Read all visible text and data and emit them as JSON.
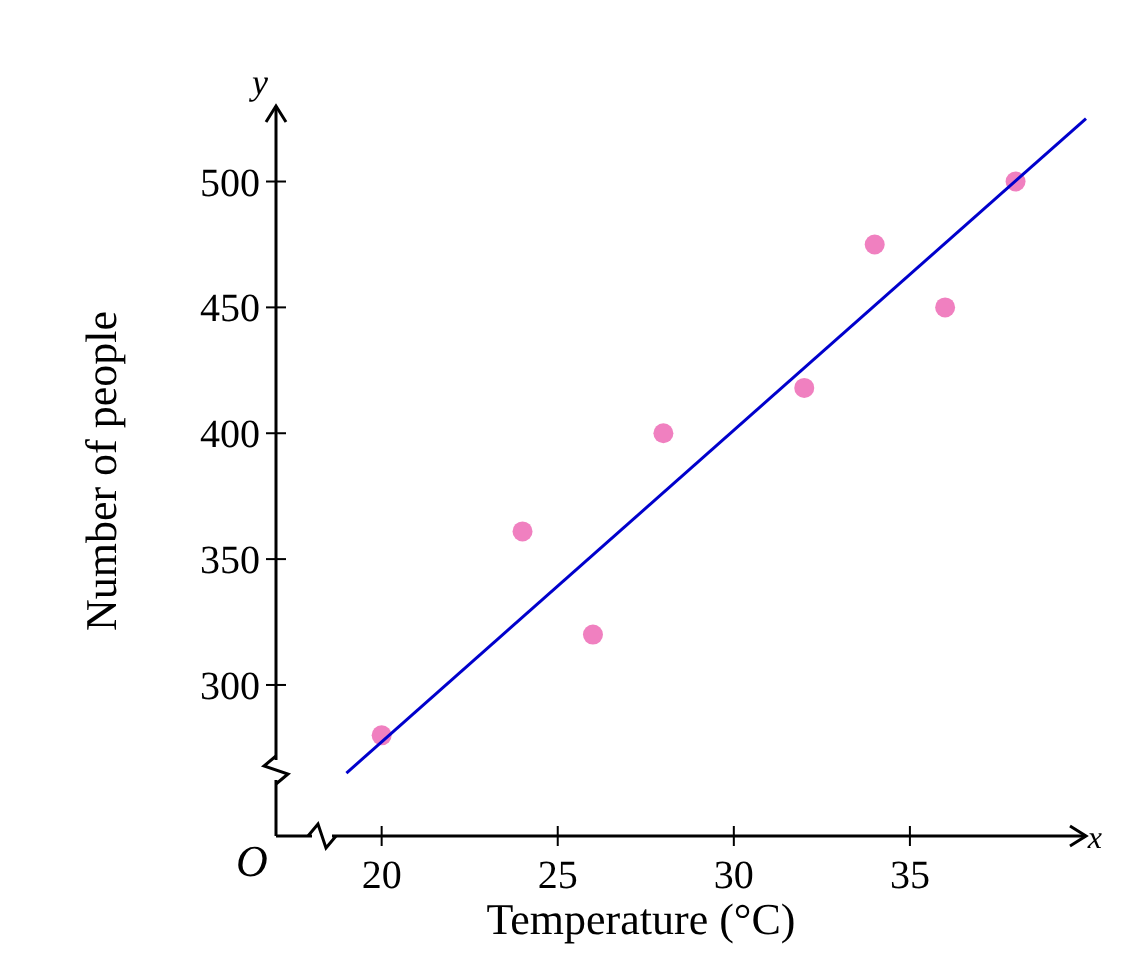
{
  "chart_data": {
    "type": "scatter",
    "xlabel": "Temperature (°C)",
    "ylabel": "Number of people",
    "xlim": [
      17,
      40
    ],
    "ylim": [
      240,
      530
    ],
    "xticks": [
      20,
      25,
      30,
      35
    ],
    "yticks": [
      300,
      350,
      400,
      450,
      500
    ],
    "grid": false,
    "annotations": [
      "O",
      "x",
      "y"
    ],
    "series": [
      {
        "marker": "circle",
        "color": "#f080c0",
        "x": [
          20,
          24,
          26,
          28,
          32,
          34,
          36,
          38
        ],
        "values": [
          280,
          361,
          320,
          400,
          418,
          475,
          450,
          500
        ]
      },
      {
        "type": "line",
        "color": "#0000cc",
        "x": [
          19,
          40
        ],
        "values": [
          265,
          525
        ]
      }
    ]
  }
}
